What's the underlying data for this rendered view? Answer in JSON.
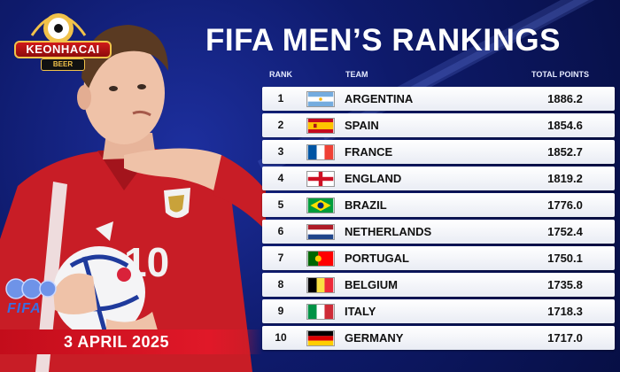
{
  "logo": {
    "brand": "KEONHACAI",
    "sub": "BEER"
  },
  "title": "FIFA MEN’S RANKINGS",
  "headers": {
    "rank": "RANK",
    "team": "TEAM",
    "points": "TOTAL POINTS"
  },
  "fifa_label": "FIFA",
  "date": "3 APRIL 2025",
  "jersey_number": "10",
  "rankings": [
    {
      "rank": "1",
      "team": "ARGENTINA",
      "points": "1886.2",
      "flag": "argentina"
    },
    {
      "rank": "2",
      "team": "SPAIN",
      "points": "1854.6",
      "flag": "spain"
    },
    {
      "rank": "3",
      "team": "FRANCE",
      "points": "1852.7",
      "flag": "france"
    },
    {
      "rank": "4",
      "team": "ENGLAND",
      "points": "1819.2",
      "flag": "england"
    },
    {
      "rank": "5",
      "team": "BRAZIL",
      "points": "1776.0",
      "flag": "brazil"
    },
    {
      "rank": "6",
      "team": "NETHERLANDS",
      "points": "1752.4",
      "flag": "netherlands"
    },
    {
      "rank": "7",
      "team": "PORTUGAL",
      "points": "1750.1",
      "flag": "portugal"
    },
    {
      "rank": "8",
      "team": "BELGIUM",
      "points": "1735.8",
      "flag": "belgium"
    },
    {
      "rank": "9",
      "team": "ITALY",
      "points": "1718.3",
      "flag": "italy"
    },
    {
      "rank": "10",
      "team": "GERMANY",
      "points": "1717.0",
      "flag": "germany"
    }
  ],
  "colors": {
    "background": "#0e1a6b",
    "banner": "#c30d1b",
    "row": "#ffffff"
  }
}
